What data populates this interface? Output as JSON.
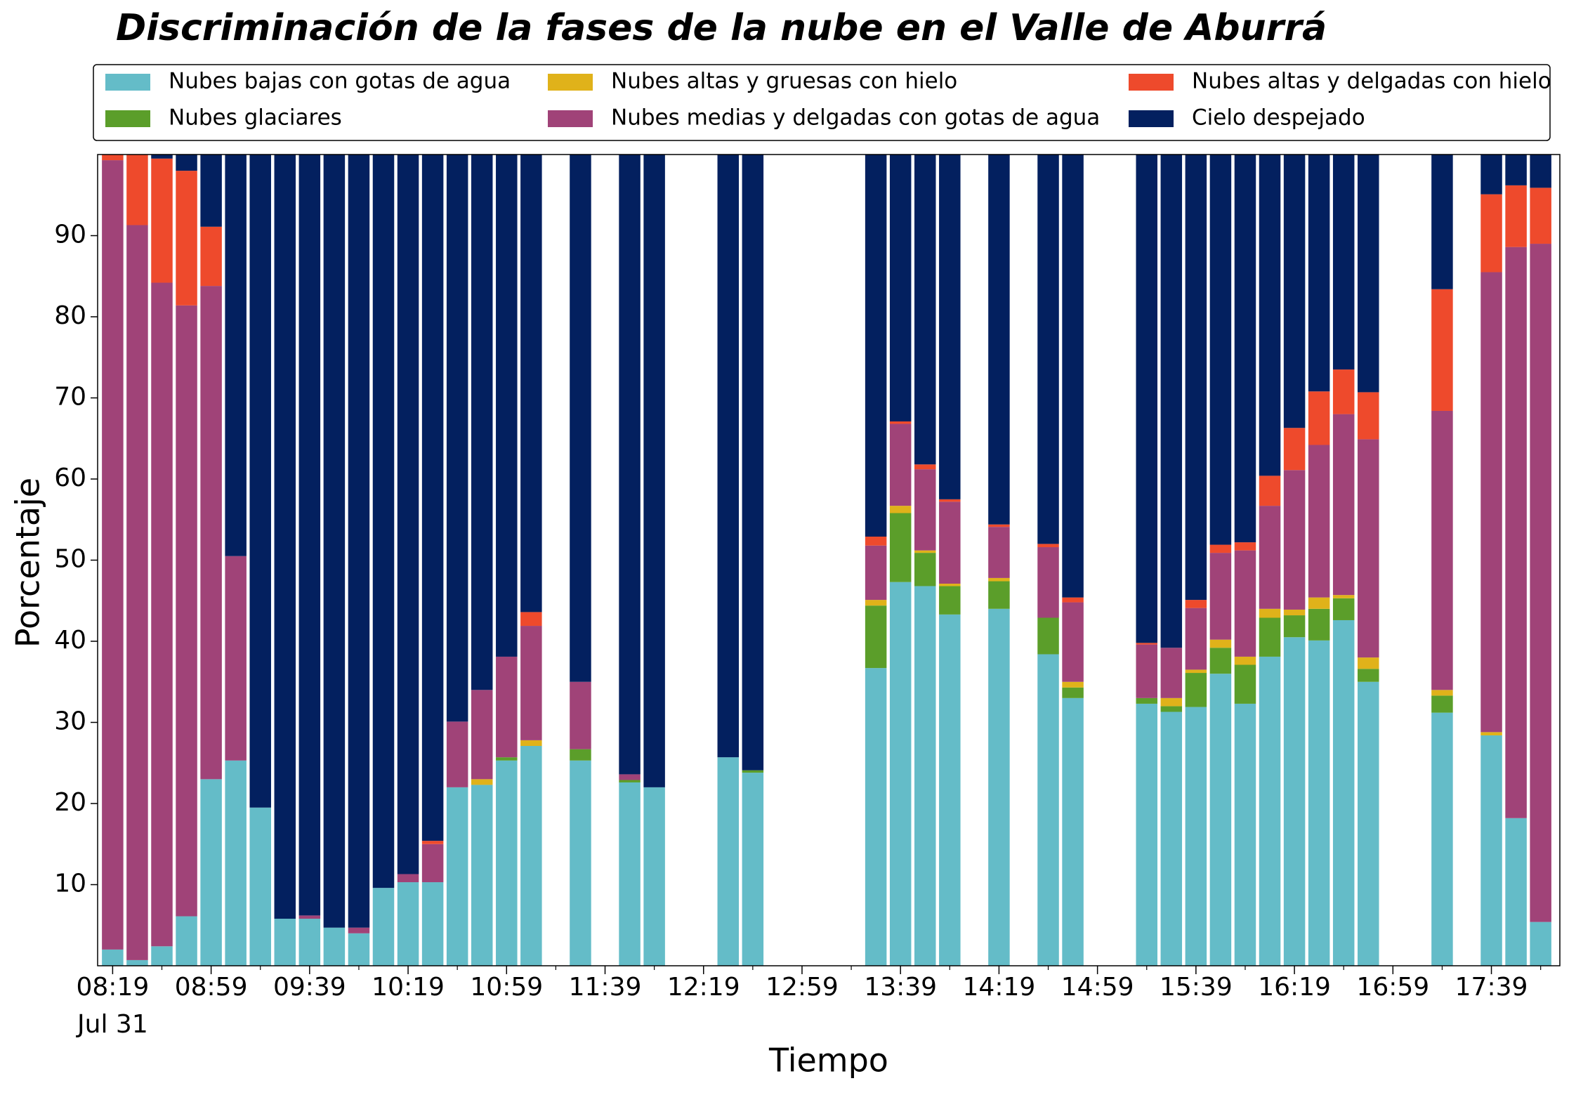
{
  "chart_data": {
    "type": "stacked_bar",
    "title": "Discriminación de la fases de la nube en el Valle de Aburrá",
    "xlabel": "Tiempo",
    "ylabel": "Porcentaje",
    "date_label": "Jul 31",
    "legend": "top",
    "legend_columns": 3,
    "ylim": [
      0,
      100
    ],
    "yticks": [
      10,
      20,
      30,
      40,
      50,
      60,
      70,
      80,
      90
    ],
    "categories": [
      "08:19",
      null,
      null,
      null,
      "08:59",
      null,
      null,
      null,
      "09:39",
      null,
      null,
      null,
      "10:19",
      null,
      null,
      null,
      "10:59",
      null,
      null,
      null,
      "11:39",
      null,
      null,
      null,
      "12:19",
      null,
      null,
      null,
      "12:59",
      null,
      null,
      null,
      "13:39",
      null,
      null,
      null,
      "14:19",
      null,
      null,
      null,
      "14:59",
      null,
      null,
      null,
      "15:39",
      null,
      null,
      null,
      "16:19",
      null,
      null,
      null,
      "16:59",
      null,
      null,
      null,
      "17:39",
      null,
      null
    ],
    "series": [
      {
        "name": "Nubes bajas con gotas de agua",
        "color": "#64bcc8",
        "values": [
          2,
          0.7,
          2.4,
          6.1,
          23,
          25.3,
          19.5,
          5.8,
          5.8,
          4.7,
          4,
          9.6,
          10.3,
          10.3,
          22,
          22.3,
          25.3,
          27.1,
          null,
          25.3,
          null,
          22.6,
          22,
          null,
          null,
          25.7,
          23.8,
          null,
          null,
          null,
          null,
          36.7,
          47.3,
          46.8,
          43.3,
          null,
          44,
          null,
          38.4,
          33,
          null,
          null,
          32.3,
          31.3,
          31.9,
          36,
          32.3,
          38.1,
          40.5,
          40.1,
          42.6,
          35,
          null,
          null,
          31.2,
          null,
          28.4,
          18.2,
          5.4
        ]
      },
      {
        "name": "Nubes glaciares",
        "color": "#5b9e2a",
        "values": [
          0,
          0,
          0,
          0,
          0,
          0,
          0,
          0,
          0,
          0,
          0,
          0,
          0,
          0,
          0,
          0,
          0.4,
          0,
          null,
          1.4,
          null,
          0.3,
          0,
          null,
          null,
          0,
          0.3,
          null,
          null,
          null,
          null,
          7.7,
          8.5,
          4.1,
          3.5,
          null,
          3.4,
          null,
          4.5,
          1.3,
          null,
          null,
          0.7,
          0.7,
          4.2,
          3.2,
          4.8,
          4.8,
          2.7,
          3.9,
          2.7,
          1.6,
          null,
          null,
          2.1,
          null,
          0,
          0,
          0
        ]
      },
      {
        "name": "Nubes altas y gruesas con hielo",
        "color": "#e0b21a",
        "values": [
          0,
          0,
          0,
          0,
          0,
          0,
          0,
          0,
          0,
          0,
          0,
          0,
          0,
          0,
          0,
          0.7,
          0,
          0.7,
          null,
          0,
          null,
          0,
          0,
          null,
          null,
          0,
          0,
          null,
          null,
          null,
          null,
          0.7,
          0.9,
          0.3,
          0.3,
          null,
          0.4,
          null,
          0,
          0.7,
          null,
          null,
          0,
          1,
          0.4,
          1,
          1,
          1.1,
          0.7,
          1.4,
          0.4,
          1.4,
          null,
          null,
          0.7,
          null,
          0.4,
          0,
          0
        ]
      },
      {
        "name": "Nubes medias y delgadas con gotas de agua",
        "color": "#a04378",
        "values": [
          97.3,
          90.6,
          81.8,
          75.3,
          60.8,
          25.2,
          0,
          0,
          0.4,
          0,
          0.7,
          0,
          1,
          4.7,
          8.1,
          11,
          12.4,
          14.1,
          null,
          8.3,
          null,
          0.7,
          0,
          null,
          null,
          0,
          0,
          null,
          null,
          null,
          null,
          6.7,
          10.1,
          10,
          10.1,
          null,
          6.3,
          null,
          8.7,
          9.8,
          null,
          null,
          6.6,
          6.2,
          7.6,
          10.7,
          13.1,
          12.7,
          17.2,
          18.8,
          22.3,
          26.9,
          null,
          null,
          34.4,
          null,
          56.7,
          70.4,
          83.6
        ]
      },
      {
        "name": "Nubes altas y delgadas con hielo",
        "color": "#ee4a2c",
        "values": [
          0.7,
          8.7,
          15.3,
          16.6,
          7.3,
          0,
          0,
          0,
          0,
          0,
          0,
          0,
          0,
          0.4,
          0,
          0,
          0,
          1.7,
          null,
          0,
          null,
          0,
          0,
          null,
          null,
          0,
          0,
          null,
          null,
          null,
          null,
          1.1,
          0.3,
          0.6,
          0.3,
          null,
          0.3,
          null,
          0.4,
          0.6,
          null,
          null,
          0.2,
          0,
          1,
          1,
          1,
          3.7,
          5.2,
          6.6,
          5.5,
          5.8,
          null,
          null,
          15,
          null,
          9.6,
          7.6,
          6.9
        ]
      },
      {
        "name": "Cielo despejado",
        "color": "#03205f",
        "values": [
          0,
          0,
          0.5,
          2,
          8.9,
          49.5,
          80.5,
          94.2,
          93.8,
          95.3,
          95.3,
          90.4,
          88.7,
          84.6,
          69.9,
          66,
          61.9,
          56.4,
          null,
          65,
          null,
          76.4,
          78,
          null,
          null,
          74.3,
          75.9,
          null,
          null,
          null,
          null,
          47.1,
          32.9,
          38.2,
          42.5,
          null,
          45.6,
          null,
          48,
          54.6,
          null,
          null,
          60.2,
          60.8,
          54.9,
          48.1,
          47.8,
          39.6,
          33.7,
          29.2,
          26.5,
          29.3,
          null,
          null,
          16.6,
          null,
          4.9,
          3.8,
          4.1
        ]
      }
    ]
  }
}
